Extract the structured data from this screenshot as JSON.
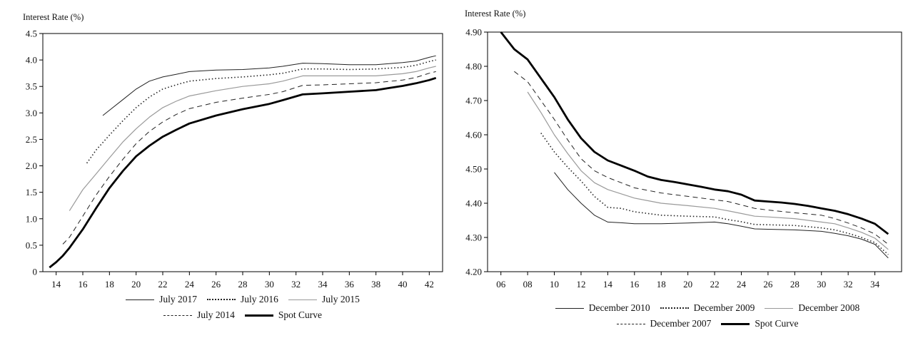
{
  "chart_data": [
    {
      "type": "line",
      "title": "",
      "ylabel": "Interest Rate (%)",
      "xlabel": "",
      "xlim": [
        13,
        43
      ],
      "ylim": [
        0,
        4.5
      ],
      "x_ticks": [
        "14",
        "16",
        "18",
        "20",
        "22",
        "24",
        "26",
        "28",
        "30",
        "32",
        "34",
        "36",
        "38",
        "40",
        "42"
      ],
      "x_tick_values": [
        14,
        16,
        18,
        20,
        22,
        24,
        26,
        28,
        30,
        32,
        34,
        36,
        38,
        40,
        42
      ],
      "y_ticks": [
        "0",
        "0.5",
        "1.0",
        "1.5",
        "2.0",
        "2.5",
        "3.0",
        "3.5",
        "4.0",
        "4.5"
      ],
      "y_tick_values": [
        0,
        0.5,
        1.0,
        1.5,
        2.0,
        2.5,
        3.0,
        3.5,
        4.0,
        4.5
      ],
      "legend_placement": "bottom",
      "series": [
        {
          "name": "July 2017",
          "style": "solid-thin",
          "points": [
            [
              17.5,
              2.95
            ],
            [
              18,
              3.05
            ],
            [
              19,
              3.25
            ],
            [
              20,
              3.45
            ],
            [
              21,
              3.6
            ],
            [
              22,
              3.68
            ],
            [
              23,
              3.73
            ],
            [
              24,
              3.78
            ],
            [
              26,
              3.81
            ],
            [
              28,
              3.82
            ],
            [
              30,
              3.85
            ],
            [
              31,
              3.88
            ],
            [
              32.5,
              3.94
            ],
            [
              34,
              3.93
            ],
            [
              36,
              3.91
            ],
            [
              38,
              3.91
            ],
            [
              40,
              3.95
            ],
            [
              41,
              3.98
            ],
            [
              42,
              4.05
            ],
            [
              42.5,
              4.08
            ]
          ]
        },
        {
          "name": "July 2016",
          "style": "dotted",
          "points": [
            [
              16.3,
              2.05
            ],
            [
              17,
              2.3
            ],
            [
              18,
              2.58
            ],
            [
              19,
              2.85
            ],
            [
              20,
              3.1
            ],
            [
              21,
              3.3
            ],
            [
              22,
              3.45
            ],
            [
              23,
              3.53
            ],
            [
              24,
              3.6
            ],
            [
              26,
              3.65
            ],
            [
              28,
              3.68
            ],
            [
              30,
              3.72
            ],
            [
              31,
              3.75
            ],
            [
              32.5,
              3.83
            ],
            [
              34,
              3.83
            ],
            [
              36,
              3.82
            ],
            [
              38,
              3.83
            ],
            [
              40,
              3.86
            ],
            [
              41,
              3.9
            ],
            [
              42,
              3.97
            ],
            [
              42.5,
              4.0
            ]
          ]
        },
        {
          "name": "July 2015",
          "style": "gray",
          "points": [
            [
              15,
              1.15
            ],
            [
              16,
              1.55
            ],
            [
              17,
              1.85
            ],
            [
              18,
              2.15
            ],
            [
              19,
              2.45
            ],
            [
              20,
              2.7
            ],
            [
              21,
              2.92
            ],
            [
              22,
              3.1
            ],
            [
              23,
              3.22
            ],
            [
              24,
              3.32
            ],
            [
              26,
              3.42
            ],
            [
              28,
              3.5
            ],
            [
              30,
              3.55
            ],
            [
              31,
              3.6
            ],
            [
              32.5,
              3.7
            ],
            [
              34,
              3.7
            ],
            [
              36,
              3.7
            ],
            [
              38,
              3.7
            ],
            [
              40,
              3.74
            ],
            [
              41,
              3.78
            ],
            [
              42,
              3.85
            ],
            [
              42.5,
              3.88
            ]
          ]
        },
        {
          "name": "July 2014",
          "style": "dashed",
          "points": [
            [
              14.5,
              0.52
            ],
            [
              15,
              0.65
            ],
            [
              16,
              1.05
            ],
            [
              17,
              1.45
            ],
            [
              18,
              1.8
            ],
            [
              19,
              2.12
            ],
            [
              20,
              2.42
            ],
            [
              21,
              2.65
            ],
            [
              22,
              2.83
            ],
            [
              23,
              2.97
            ],
            [
              24,
              3.08
            ],
            [
              26,
              3.2
            ],
            [
              28,
              3.28
            ],
            [
              30,
              3.35
            ],
            [
              31,
              3.4
            ],
            [
              32.5,
              3.52
            ],
            [
              34,
              3.53
            ],
            [
              36,
              3.55
            ],
            [
              38,
              3.57
            ],
            [
              40,
              3.62
            ],
            [
              41,
              3.67
            ],
            [
              42,
              3.75
            ],
            [
              42.5,
              3.78
            ]
          ]
        },
        {
          "name": "Spot Curve",
          "style": "thick",
          "points": [
            [
              13.5,
              0.08
            ],
            [
              14,
              0.18
            ],
            [
              14.5,
              0.3
            ],
            [
              15,
              0.45
            ],
            [
              16,
              0.8
            ],
            [
              17,
              1.2
            ],
            [
              18,
              1.58
            ],
            [
              19,
              1.9
            ],
            [
              20,
              2.18
            ],
            [
              21,
              2.38
            ],
            [
              22,
              2.55
            ],
            [
              23,
              2.68
            ],
            [
              24,
              2.8
            ],
            [
              26,
              2.95
            ],
            [
              28,
              3.07
            ],
            [
              30,
              3.17
            ],
            [
              31,
              3.24
            ],
            [
              32.5,
              3.35
            ],
            [
              34,
              3.37
            ],
            [
              36,
              3.4
            ],
            [
              38,
              3.43
            ],
            [
              39,
              3.47
            ],
            [
              40,
              3.51
            ],
            [
              41,
              3.56
            ],
            [
              42,
              3.62
            ],
            [
              42.5,
              3.66
            ]
          ]
        }
      ]
    },
    {
      "type": "line",
      "title": "",
      "ylabel": "Interest Rate (%)",
      "xlabel": "",
      "xlim": [
        5,
        36
      ],
      "ylim": [
        4.2,
        4.9
      ],
      "x_ticks": [
        "06",
        "08",
        "10",
        "12",
        "14",
        "16",
        "18",
        "20",
        "22",
        "24",
        "26",
        "28",
        "30",
        "32",
        "34"
      ],
      "x_tick_values": [
        6,
        8,
        10,
        12,
        14,
        16,
        18,
        20,
        22,
        24,
        26,
        28,
        30,
        32,
        34
      ],
      "y_ticks": [
        "4.20",
        "4.30",
        "4.40",
        "4.50",
        "4.60",
        "4.70",
        "4.80",
        "4.90"
      ],
      "y_tick_values": [
        4.2,
        4.3,
        4.4,
        4.5,
        4.6,
        4.7,
        4.8,
        4.9
      ],
      "legend_placement": "bottom",
      "series": [
        {
          "name": "December 2010",
          "style": "solid-thin",
          "points": [
            [
              10,
              4.49
            ],
            [
              11,
              4.44
            ],
            [
              12,
              4.4
            ],
            [
              13,
              4.365
            ],
            [
              14,
              4.345
            ],
            [
              15,
              4.343
            ],
            [
              16,
              4.34
            ],
            [
              18,
              4.34
            ],
            [
              20,
              4.342
            ],
            [
              22,
              4.345
            ],
            [
              23,
              4.34
            ],
            [
              24,
              4.333
            ],
            [
              25,
              4.325
            ],
            [
              26,
              4.324
            ],
            [
              28,
              4.322
            ],
            [
              30,
              4.318
            ],
            [
              31,
              4.312
            ],
            [
              32,
              4.305
            ],
            [
              33,
              4.295
            ],
            [
              34,
              4.28
            ],
            [
              35,
              4.24
            ]
          ]
        },
        {
          "name": "December 2009",
          "style": "dotted",
          "points": [
            [
              9,
              4.605
            ],
            [
              10,
              4.55
            ],
            [
              11,
              4.505
            ],
            [
              12,
              4.465
            ],
            [
              13,
              4.42
            ],
            [
              14,
              4.388
            ],
            [
              15,
              4.385
            ],
            [
              16,
              4.375
            ],
            [
              18,
              4.365
            ],
            [
              20,
              4.362
            ],
            [
              22,
              4.36
            ],
            [
              23,
              4.352
            ],
            [
              24,
              4.346
            ],
            [
              25,
              4.338
            ],
            [
              26,
              4.337
            ],
            [
              28,
              4.335
            ],
            [
              30,
              4.328
            ],
            [
              31,
              4.322
            ],
            [
              32,
              4.312
            ],
            [
              33,
              4.3
            ],
            [
              34,
              4.285
            ],
            [
              35,
              4.25
            ]
          ]
        },
        {
          "name": "December 2008",
          "style": "gray",
          "points": [
            [
              8,
              4.725
            ],
            [
              9,
              4.665
            ],
            [
              10,
              4.6
            ],
            [
              11,
              4.545
            ],
            [
              12,
              4.495
            ],
            [
              13,
              4.46
            ],
            [
              14,
              4.44
            ],
            [
              16,
              4.415
            ],
            [
              18,
              4.4
            ],
            [
              20,
              4.393
            ],
            [
              22,
              4.385
            ],
            [
              23,
              4.378
            ],
            [
              24,
              4.37
            ],
            [
              25,
              4.362
            ],
            [
              26,
              4.36
            ],
            [
              28,
              4.355
            ],
            [
              30,
              4.345
            ],
            [
              31,
              4.34
            ],
            [
              32,
              4.328
            ],
            [
              33,
              4.315
            ],
            [
              34,
              4.298
            ],
            [
              35,
              4.265
            ]
          ]
        },
        {
          "name": "December 2007",
          "style": "dashed",
          "points": [
            [
              7,
              4.785
            ],
            [
              8,
              4.755
            ],
            [
              9,
              4.7
            ],
            [
              10,
              4.645
            ],
            [
              11,
              4.585
            ],
            [
              12,
              4.53
            ],
            [
              13,
              4.495
            ],
            [
              14,
              4.475
            ],
            [
              16,
              4.445
            ],
            [
              18,
              4.43
            ],
            [
              20,
              4.42
            ],
            [
              22,
              4.41
            ],
            [
              23,
              4.405
            ],
            [
              24,
              4.395
            ],
            [
              25,
              4.385
            ],
            [
              26,
              4.38
            ],
            [
              28,
              4.372
            ],
            [
              30,
              4.365
            ],
            [
              31,
              4.355
            ],
            [
              32,
              4.342
            ],
            [
              33,
              4.328
            ],
            [
              34,
              4.31
            ],
            [
              35,
              4.28
            ]
          ]
        },
        {
          "name": "Spot Curve",
          "style": "thick",
          "points": [
            [
              6,
              4.9
            ],
            [
              7,
              4.85
            ],
            [
              8,
              4.82
            ],
            [
              9,
              4.765
            ],
            [
              10,
              4.71
            ],
            [
              11,
              4.645
            ],
            [
              12,
              4.59
            ],
            [
              13,
              4.55
            ],
            [
              14,
              4.525
            ],
            [
              15,
              4.51
            ],
            [
              16,
              4.495
            ],
            [
              17,
              4.478
            ],
            [
              18,
              4.468
            ],
            [
              19,
              4.462
            ],
            [
              20,
              4.455
            ],
            [
              21,
              4.448
            ],
            [
              22,
              4.44
            ],
            [
              23,
              4.435
            ],
            [
              24,
              4.425
            ],
            [
              25,
              4.408
            ],
            [
              26,
              4.405
            ],
            [
              27,
              4.402
            ],
            [
              28,
              4.398
            ],
            [
              29,
              4.392
            ],
            [
              30,
              4.385
            ],
            [
              31,
              4.378
            ],
            [
              32,
              4.368
            ],
            [
              33,
              4.355
            ],
            [
              34,
              4.34
            ],
            [
              35,
              4.31
            ]
          ]
        }
      ]
    }
  ]
}
